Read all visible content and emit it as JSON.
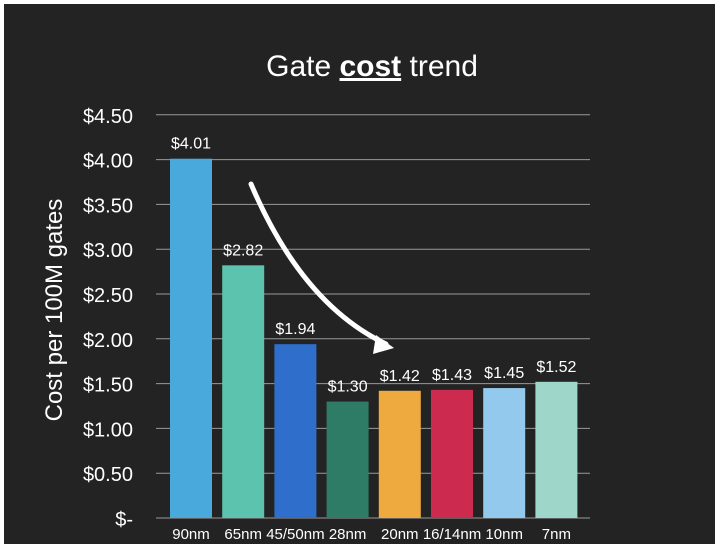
{
  "chart_data": {
    "type": "bar",
    "title_parts": [
      "Gate ",
      "cost",
      " trend"
    ],
    "ylabel": "Cost per 100M gates",
    "xlabel": "",
    "categories": [
      "90nm",
      "65nm",
      "45/50nm",
      "28nm",
      "20nm",
      "16/14nm",
      "10nm",
      "7nm"
    ],
    "values": [
      4.01,
      2.82,
      1.94,
      1.3,
      1.42,
      1.43,
      1.45,
      1.52
    ],
    "value_labels": [
      "$4.01",
      "$2.82",
      "$1.94",
      "$1.30",
      "$1.42",
      "$1.43",
      "$1.45",
      "$1.52"
    ],
    "bar_colors": [
      "#4aa9dc",
      "#5cc4ae",
      "#2f6fcb",
      "#2e7c66",
      "#eea93f",
      "#cc2b4f",
      "#93c9ec",
      "#9ed7c9"
    ],
    "ylim": [
      0,
      4.5
    ],
    "yticks": [
      0,
      0.5,
      1,
      1.5,
      2,
      2.5,
      3,
      3.5,
      4,
      4.5
    ],
    "ytick_labels": [
      "$-",
      "$0.50",
      "$1.00",
      "$1.50",
      "$2.00",
      "$2.50",
      "$3.00",
      "$3.50",
      "$4.00",
      "$4.50"
    ],
    "grid": true,
    "background": "#232323",
    "text_color": "#ffffff",
    "annotations": [
      {
        "kind": "curved-arrow",
        "color": "#ffffff",
        "direction": "downward trend"
      }
    ]
  }
}
